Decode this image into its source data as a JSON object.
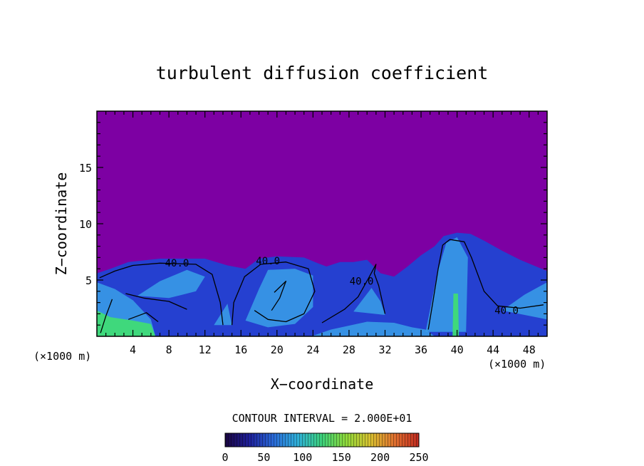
{
  "chart_data": {
    "type": "heatmap",
    "title": "turbulent diffusion coefficient",
    "xlabel": "X−coordinate",
    "ylabel": "Z−coordinate",
    "x_unit_left": "(×1000 m)",
    "x_unit_right": "(×1000 m)",
    "xlim": [
      0,
      50
    ],
    "ylim": [
      0,
      20
    ],
    "x_ticks": [
      4,
      8,
      12,
      16,
      20,
      24,
      28,
      32,
      36,
      40,
      44,
      48
    ],
    "y_ticks": [
      5,
      10,
      15
    ],
    "contour_labels": [
      {
        "text": "40.0",
        "x": 8.9,
        "z": 6.2
      },
      {
        "text": "40.0",
        "x": 19.0,
        "z": 6.4
      },
      {
        "text": "40.0",
        "x": 29.4,
        "z": 4.6
      },
      {
        "text": "40.0",
        "x": 45.5,
        "z": 2.0
      }
    ],
    "contour_interval_label": "CONTOUR INTERVAL = 2.000E+01",
    "colorbar": {
      "min": 0,
      "max": 250,
      "tick_values": [
        0,
        50,
        100,
        150,
        200,
        250
      ],
      "tick_labels": [
        "0",
        "50",
        "100",
        "150",
        "200",
        "250"
      ],
      "colors": [
        "#1a0540",
        "#1e1f9a",
        "#2a6ad8",
        "#2fb0d8",
        "#3cd17a",
        "#8fd93a",
        "#d8c030",
        "#e07030",
        "#c02a20"
      ]
    },
    "background_color": "#7d00a3",
    "field_colors": {
      "low": "#2540d0",
      "mid": "#3aa0e8",
      "high": "#40e070"
    }
  }
}
